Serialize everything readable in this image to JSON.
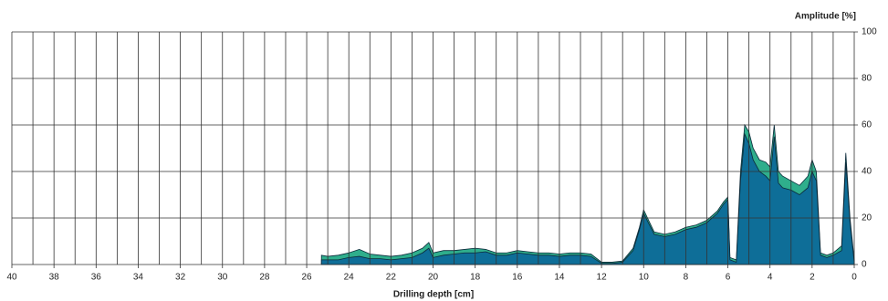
{
  "chart_data": {
    "type": "area",
    "xlabel": "Drilling depth [cm]",
    "ylabel": "Amplitude [%]",
    "x": [
      25.3,
      25,
      24.5,
      24,
      23.5,
      23,
      22.5,
      22,
      21.5,
      21,
      20.5,
      20.2,
      20,
      19.5,
      19,
      18.5,
      18,
      17.5,
      17,
      16.5,
      16,
      15.5,
      15,
      14.5,
      14,
      13.5,
      13,
      12.5,
      12,
      11.5,
      11,
      10.5,
      10.2,
      10,
      9.5,
      9,
      8.5,
      8,
      7.5,
      7,
      6.5,
      6.2,
      6,
      5.9,
      5.6,
      5.4,
      5.2,
      5,
      4.8,
      4.5,
      4.2,
      4,
      3.8,
      3.6,
      3.4,
      3,
      2.6,
      2.2,
      2,
      1.8,
      1.6,
      1.3,
      1,
      0.6,
      0.4,
      0.2,
      0
    ],
    "series": [
      {
        "color": "#2fae8c",
        "values": [
          4,
          3.5,
          4,
          5,
          6.5,
          4.5,
          4,
          3.5,
          4,
          5,
          7,
          9.5,
          5,
          6,
          6,
          6.5,
          7,
          6.5,
          5,
          5,
          6,
          5.5,
          5,
          5,
          4.5,
          5,
          5,
          4.5,
          1,
          1,
          1.5,
          7,
          16,
          23.5,
          14,
          13,
          14,
          16,
          17,
          19,
          23,
          27,
          29,
          3,
          2,
          40,
          60,
          57,
          50,
          45,
          44,
          42,
          60,
          40,
          38,
          36,
          34,
          38,
          45,
          40,
          5,
          4,
          5,
          8,
          48,
          20,
          2
        ]
      },
      {
        "color": "#0e6e98",
        "values": [
          2,
          2,
          2,
          3,
          3.5,
          2.5,
          2.5,
          2,
          2.5,
          3,
          5,
          7,
          3,
          4,
          4.5,
          5,
          5,
          5.5,
          4,
          4,
          5,
          4.5,
          4,
          4,
          3.5,
          4,
          4,
          3.5,
          0.5,
          0.5,
          1,
          6,
          15,
          22,
          13,
          12,
          13,
          15,
          16,
          18,
          22,
          26,
          28,
          2,
          1,
          36,
          56,
          52,
          45,
          40,
          38,
          36,
          55,
          35,
          33,
          32,
          30,
          33,
          40,
          36,
          4,
          3,
          4,
          6,
          44,
          18,
          1
        ]
      }
    ],
    "xlim": [
      40,
      0
    ],
    "xticks": [
      40,
      38,
      36,
      34,
      32,
      30,
      28,
      26,
      24,
      22,
      20,
      18,
      16,
      14,
      12,
      10,
      8,
      6,
      4,
      2,
      0
    ],
    "xminorticks": [
      39,
      37,
      35,
      33,
      31,
      29,
      27,
      25,
      23,
      21,
      19,
      17,
      15,
      13,
      11,
      9,
      7,
      5,
      3,
      1
    ],
    "ylim": [
      0,
      100
    ],
    "yticks": [
      0,
      20,
      40,
      60,
      80,
      100
    ],
    "grid": true
  }
}
